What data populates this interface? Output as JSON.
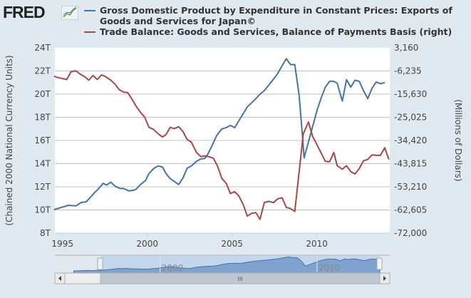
{
  "header": {
    "logo": "FRED",
    "logo_icon": "line-chart-icon"
  },
  "legend": [
    {
      "label": "Gross Domestic Product by Expenditure in Constant Prices: Exports of Goods and Services for Japan©",
      "color": "#4572a7"
    },
    {
      "label": "Trade Balance: Goods and Services, Balance of Payments Basis (right)",
      "color": "#aa4643"
    }
  ],
  "chart_data": {
    "type": "line",
    "xlim": [
      1994.55,
      2014.3
    ],
    "x_ticks": [
      "1995",
      "2000",
      "2005",
      "2010"
    ],
    "x_tick_values": [
      1995,
      2000,
      2005,
      2010
    ],
    "y_left": {
      "label": "(Chained 2000 National Currency Units)",
      "range": [
        8,
        24
      ],
      "ticks": [
        "8T",
        "10T",
        "12T",
        "14T",
        "16T",
        "18T",
        "20T",
        "22T",
        "24T"
      ]
    },
    "y_right": {
      "label": "(Millions of Dollars)",
      "range": [
        -72000,
        3160
      ],
      "ticks": [
        "-72,000",
        "-62,605",
        "-53,210",
        "-43,815",
        "-34,420",
        "-25,025",
        "-15,630",
        "-6,235",
        "3,160"
      ]
    },
    "grid": true,
    "series": [
      {
        "name": "Gross Domestic Product by Expenditure in Constant Prices: Exports of Goods and Services for Japan©",
        "axis": "left",
        "unit": "T",
        "color": "#4572a7",
        "x": [
          1994.5,
          1995.35,
          1995.8,
          1996.1,
          1996.4,
          1996.9,
          1997.1,
          1997.4,
          1997.6,
          1997.85,
          1998.1,
          1998.4,
          1998.6,
          1998.9,
          1999.2,
          1999.35,
          1999.6,
          1999.9,
          2000.1,
          2000.4,
          2000.65,
          2000.9,
          2001.1,
          2001.35,
          2001.6,
          2001.85,
          2002.1,
          2002.35,
          2002.6,
          2002.9,
          2003.15,
          2003.4,
          2003.6,
          2003.85,
          2004.1,
          2004.4,
          2004.65,
          2004.9,
          2005.15,
          2005.4,
          2005.65,
          2005.9,
          2006.15,
          2006.4,
          2006.65,
          2006.9,
          2007.15,
          2007.45,
          2007.7,
          2007.95,
          2008.2,
          2008.45,
          2008.7,
          2008.95,
          2009.15,
          2009.25,
          2009.5,
          2009.75,
          2010.0,
          2010.25,
          2010.5,
          2010.75,
          2011.0,
          2011.2,
          2011.5,
          2011.75,
          2012.0,
          2012.25,
          2012.5,
          2012.75,
          2013.0,
          2013.25,
          2013.5,
          2013.75,
          2014.0
        ],
        "values": [
          10.03,
          10.4,
          10.35,
          10.65,
          10.7,
          11.5,
          11.8,
          12.3,
          12.15,
          12.4,
          12.05,
          11.85,
          11.85,
          11.65,
          11.7,
          11.8,
          12.2,
          12.55,
          13.15,
          13.6,
          13.8,
          13.7,
          13.15,
          12.7,
          12.45,
          12.2,
          12.75,
          13.6,
          13.8,
          14.2,
          14.4,
          14.45,
          14.9,
          15.65,
          16.45,
          17.0,
          17.1,
          17.3,
          17.1,
          17.7,
          18.3,
          18.9,
          19.25,
          19.6,
          20.0,
          20.3,
          20.75,
          21.3,
          21.8,
          22.45,
          23.05,
          22.55,
          22.55,
          19.95,
          16.45,
          14.5,
          15.85,
          17.2,
          18.55,
          19.65,
          20.6,
          21.1,
          21.1,
          20.95,
          19.4,
          21.25,
          20.6,
          21.2,
          21.1,
          20.3,
          19.6,
          20.5,
          21.05,
          20.9,
          21.0
        ]
      },
      {
        "name": "Trade Balance: Goods and Services, Balance of Payments Basis (right)",
        "axis": "right",
        "unit": "Millions of Dollars",
        "color": "#aa4643",
        "x": [
          1994.5,
          1994.8,
          1995.25,
          1995.5,
          1995.8,
          1996.05,
          1996.3,
          1996.55,
          1996.8,
          1997.05,
          1997.3,
          1997.5,
          1997.85,
          1998.1,
          1998.35,
          1998.6,
          1998.85,
          1999.1,
          1999.35,
          1999.6,
          1999.85,
          2000.1,
          2000.35,
          2000.65,
          2000.9,
          2001.1,
          2001.35,
          2001.6,
          2001.85,
          2002.1,
          2002.35,
          2002.6,
          2002.9,
          2003.15,
          2003.4,
          2003.6,
          2003.9,
          2004.15,
          2004.4,
          2004.65,
          2004.9,
          2005.15,
          2005.4,
          2005.65,
          2005.9,
          2006.15,
          2006.4,
          2006.65,
          2006.9,
          2007.15,
          2007.45,
          2007.7,
          2007.95,
          2008.2,
          2008.45,
          2008.7,
          2008.9,
          2009.2,
          2009.5,
          2009.75,
          2010.0,
          2010.25,
          2010.5,
          2010.75,
          2011.0,
          2011.2,
          2011.5,
          2011.75,
          2012.0,
          2012.25,
          2012.5,
          2012.75,
          2013.0,
          2013.25,
          2013.5,
          2013.75,
          2014.0,
          2014.25
        ],
        "values": [
          -8360,
          -9030,
          -9700,
          -6620,
          -6210,
          -7570,
          -8540,
          -9990,
          -8070,
          -9700,
          -7860,
          -8360,
          -9990,
          -11640,
          -13870,
          -14830,
          -15030,
          -17730,
          -20640,
          -23050,
          -24990,
          -29140,
          -29840,
          -31750,
          -33030,
          -32040,
          -29140,
          -29630,
          -28850,
          -30790,
          -33980,
          -35150,
          -39300,
          -40950,
          -40750,
          -40950,
          -41620,
          -45010,
          -49860,
          -51770,
          -55950,
          -55170,
          -56910,
          -60310,
          -65130,
          -63970,
          -63680,
          -66400,
          -59610,
          -59140,
          -59610,
          -58070,
          -57700,
          -61560,
          -62050,
          -63210,
          -50620,
          -31750,
          -26930,
          -32730,
          -36100,
          -39500,
          -42890,
          -43070,
          -39300,
          -44640,
          -46090,
          -44640,
          -47040,
          -48000,
          -45800,
          -42690,
          -42110,
          -40280,
          -40460,
          -40460,
          -37380,
          -42110
        ]
      }
    ]
  },
  "navigator": {
    "labels": [
      "2000",
      "2010"
    ],
    "label_values": [
      2000,
      2010
    ],
    "range": [
      1993.3,
      2014.0
    ],
    "selected": [
      1994.55,
      2014.3
    ]
  }
}
